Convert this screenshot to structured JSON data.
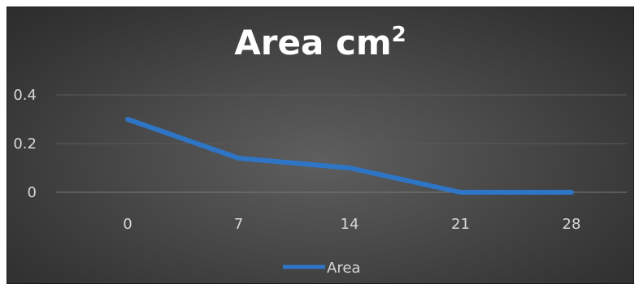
{
  "chart_data": {
    "type": "line",
    "title": "Area cm",
    "title_superscript": "2",
    "categories": [
      "0",
      "7",
      "14",
      "21",
      "28"
    ],
    "series": [
      {
        "name": "Area",
        "values": [
          0.3,
          0.14,
          0.1,
          0.0,
          0.0
        ],
        "color": "#2e75c6"
      }
    ],
    "y_ticks": [
      0,
      0.2,
      0.4
    ],
    "y_tick_labels": [
      "0",
      "0.2",
      "0.4"
    ],
    "ylim": [
      0,
      0.4
    ],
    "grid": true,
    "legend_position": "bottom"
  }
}
